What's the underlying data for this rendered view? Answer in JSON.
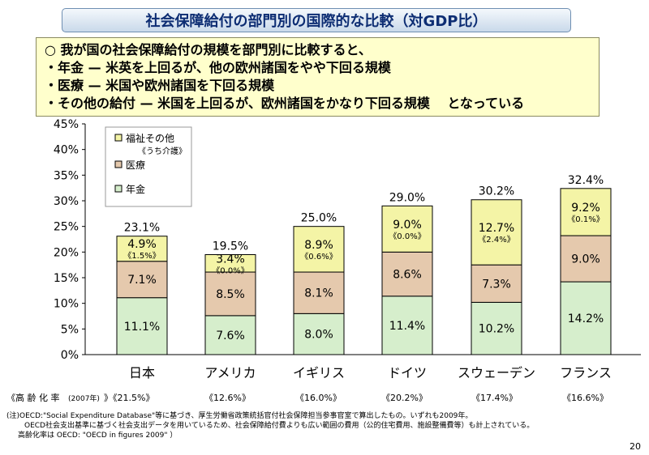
{
  "title": "社会保障給付の部門別の国際的な比較（対GDP比）",
  "summary": [
    "○ 我が国の社会保障給付の規模を部門別に比較すると、",
    "・年金 — 米英を上回るが、他の欧州諸国をやや下回る規模",
    "・医療 — 米国や欧州諸国を下回る規模",
    "・その他の給付 — 米国を上回るが、欧州諸国をかなり下回る規模　 となっている"
  ],
  "chart_data": {
    "type": "bar",
    "stacked": true,
    "categories": [
      "日本",
      "アメリカ",
      "イギリス",
      "ドイツ",
      "スウェーデン",
      "フランス"
    ],
    "series": [
      {
        "name": "年金",
        "values": [
          11.1,
          7.6,
          8.0,
          11.4,
          10.2,
          14.2
        ],
        "labels": [
          "11.1%",
          "7.6%",
          "8.0%",
          "11.4%",
          "10.2%",
          "14.2%"
        ],
        "color": "#d6eecc"
      },
      {
        "name": "医療",
        "values": [
          7.1,
          8.5,
          8.1,
          8.6,
          7.3,
          9.0
        ],
        "labels": [
          "7.1%",
          "8.5%",
          "8.1%",
          "8.6%",
          "7.3%",
          "9.0%"
        ],
        "color": "#e5c9ad"
      },
      {
        "name": "福祉その他",
        "values": [
          4.9,
          3.4,
          8.9,
          9.0,
          12.7,
          9.2
        ],
        "labels": [
          "4.9%",
          "3.4%",
          "8.9%",
          "9.0%",
          "12.7%",
          "9.2%"
        ],
        "color": "#f4f4a6"
      }
    ],
    "kaigo_labels": [
      "《1.5%》",
      "《0.0%》",
      "《0.6%》",
      "《0.0%》",
      "《2.4%》",
      "《0.1%》"
    ],
    "totals": [
      "23.1%",
      "19.5%",
      "25.0%",
      "29.0%",
      "30.2%",
      "32.4%"
    ],
    "yticks": [
      "0%",
      "5%",
      "10%",
      "15%",
      "20%",
      "25%",
      "30%",
      "35%",
      "40%",
      "45%"
    ],
    "ylim": [
      0,
      45
    ],
    "grid": false,
    "legend": {
      "placement": "top-left",
      "kaigo_note": "《うち介護》"
    }
  },
  "aging": {
    "label": "《高 齢 化 率",
    "year": "(2007年)",
    "values": [
      "》《21.5%》",
      "《12.6%》",
      "《16.0%》",
      "《20.2%》",
      "《17.4%》",
      "《16.6%》"
    ]
  },
  "notes": [
    "(注)OECD:\"Social Expenditure Database\"等に基づき、厚生労働省政策統括官付社会保障担当参事官室で算出したもの。いずれも2009年。",
    "OECD社会支出基準に基づく社会支出データを用いているため、社会保障給付費よりも広い範囲の費用（公的住宅費用、施設整備費等）も計上されている。",
    "高齢化率は OECD: \"OECD in figures 2009\" ）"
  ],
  "page_number": "20",
  "colors": {
    "pension": "#d6eecc",
    "medical": "#e5c9ad",
    "welfare": "#f4f4a6",
    "title_text": "#0d2d73",
    "summary_bg": "#ffffcc"
  }
}
